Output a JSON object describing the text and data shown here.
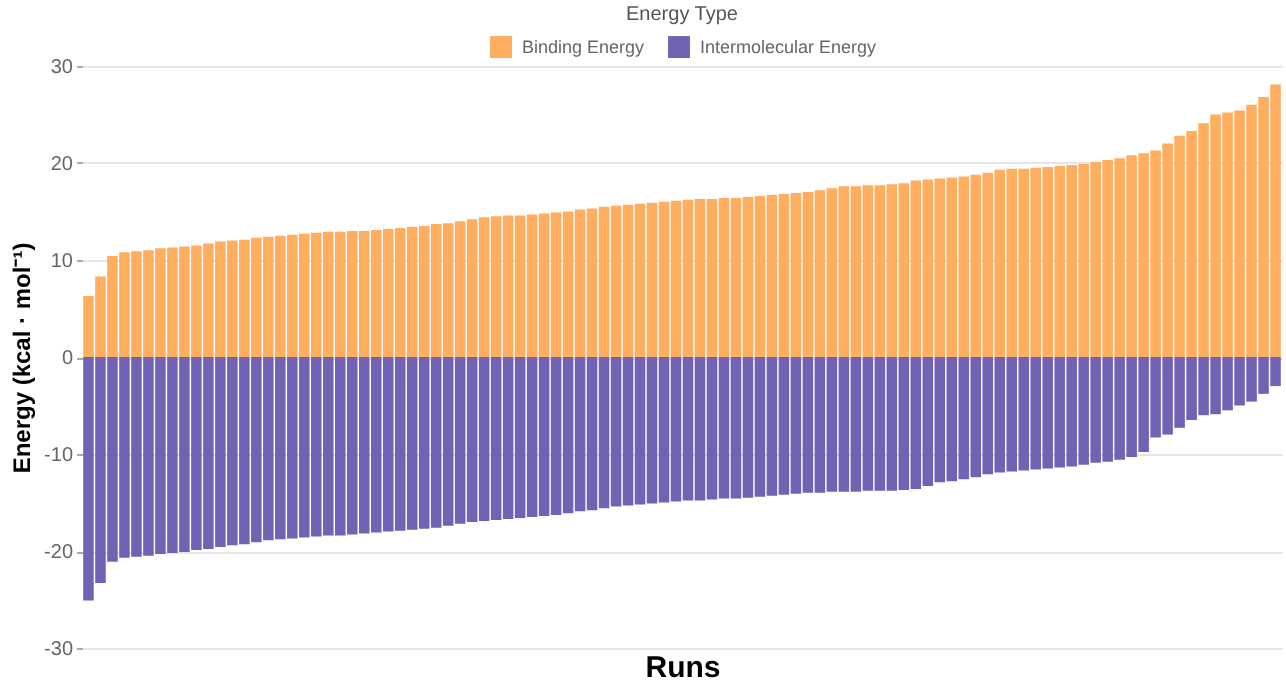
{
  "chart_data": {
    "type": "bar",
    "xlabel": "Runs",
    "ylabel": "Energy (kcal · mol⁻¹)",
    "legend_title": "Energy Type",
    "categories": [
      null,
      null,
      null,
      null,
      null,
      null,
      null,
      null,
      null,
      null,
      null,
      null,
      null,
      null,
      null,
      null,
      null,
      null,
      null,
      null,
      null,
      null,
      null,
      null,
      null,
      null,
      null,
      null,
      null,
      null,
      null,
      null,
      null,
      null,
      null,
      null,
      null,
      null,
      null,
      null,
      null,
      null,
      null,
      null,
      null,
      null,
      null,
      null,
      null,
      null,
      null,
      null,
      null,
      null,
      null,
      null,
      null,
      null,
      null,
      null,
      null,
      null,
      null,
      null,
      null,
      null,
      null,
      null,
      null,
      null,
      null,
      null,
      null,
      null,
      null,
      null,
      null,
      null,
      null,
      null,
      null,
      null,
      null,
      null,
      null,
      null,
      null,
      null,
      null,
      null,
      null,
      null,
      null,
      null,
      null,
      null,
      null,
      null,
      null,
      null
    ],
    "series": [
      {
        "name": "Binding Energy",
        "color": "#ffad5f",
        "values": [
          6.3,
          8.3,
          10.4,
          10.8,
          10.9,
          11.0,
          11.2,
          11.3,
          11.4,
          11.5,
          11.7,
          11.9,
          12.0,
          12.1,
          12.3,
          12.4,
          12.5,
          12.6,
          12.7,
          12.8,
          12.9,
          12.9,
          13.0,
          13.0,
          13.1,
          13.2,
          13.3,
          13.4,
          13.5,
          13.7,
          13.8,
          14.0,
          14.2,
          14.4,
          14.5,
          14.6,
          14.6,
          14.7,
          14.8,
          14.9,
          15.0,
          15.2,
          15.3,
          15.5,
          15.6,
          15.7,
          15.8,
          15.9,
          16.0,
          16.1,
          16.2,
          16.3,
          16.3,
          16.4,
          16.4,
          16.5,
          16.6,
          16.7,
          16.8,
          16.9,
          17.0,
          17.2,
          17.4,
          17.6,
          17.6,
          17.7,
          17.7,
          17.8,
          17.9,
          18.2,
          18.3,
          18.4,
          18.5,
          18.6,
          18.8,
          19.0,
          19.3,
          19.4,
          19.4,
          19.5,
          19.6,
          19.7,
          19.8,
          19.9,
          20.1,
          20.3,
          20.5,
          20.8,
          21.0,
          21.3,
          22.0,
          22.8,
          23.3,
          24.1,
          25.0,
          25.2,
          25.4,
          26.0,
          26.8,
          28.1
        ]
      },
      {
        "name": "Intermolecular Energy",
        "color": "#7262b3",
        "values": [
          -25.1,
          -23.3,
          -21.1,
          -20.7,
          -20.6,
          -20.5,
          -20.3,
          -20.2,
          -20.1,
          -19.9,
          -19.8,
          -19.6,
          -19.4,
          -19.3,
          -19.1,
          -18.9,
          -18.8,
          -18.7,
          -18.6,
          -18.5,
          -18.4,
          -18.4,
          -18.3,
          -18.2,
          -18.1,
          -18.0,
          -17.9,
          -17.8,
          -17.7,
          -17.6,
          -17.4,
          -17.2,
          -17.0,
          -16.9,
          -16.8,
          -16.7,
          -16.6,
          -16.5,
          -16.4,
          -16.3,
          -16.1,
          -15.9,
          -15.8,
          -15.6,
          -15.4,
          -15.3,
          -15.2,
          -15.1,
          -15.0,
          -14.9,
          -14.8,
          -14.8,
          -14.7,
          -14.6,
          -14.6,
          -14.5,
          -14.4,
          -14.3,
          -14.2,
          -14.1,
          -14.0,
          -14.0,
          -13.9,
          -13.9,
          -13.9,
          -13.8,
          -13.8,
          -13.8,
          -13.7,
          -13.6,
          -13.3,
          -12.9,
          -12.8,
          -12.6,
          -12.4,
          -12.1,
          -11.9,
          -11.8,
          -11.7,
          -11.6,
          -11.5,
          -11.4,
          -11.3,
          -11.1,
          -10.9,
          -10.8,
          -10.6,
          -10.3,
          -9.8,
          -8.3,
          -8.0,
          -7.3,
          -6.5,
          -6.0,
          -5.9,
          -5.5,
          -5.0,
          -4.6,
          -3.8,
          -3.0
        ]
      }
    ],
    "ylim": [
      -30,
      30
    ],
    "stacked": true,
    "yticks": [
      -30,
      -20,
      -10,
      0,
      10,
      20,
      30
    ],
    "grid": "y",
    "legend": "top",
    "tick_labels": "y"
  }
}
